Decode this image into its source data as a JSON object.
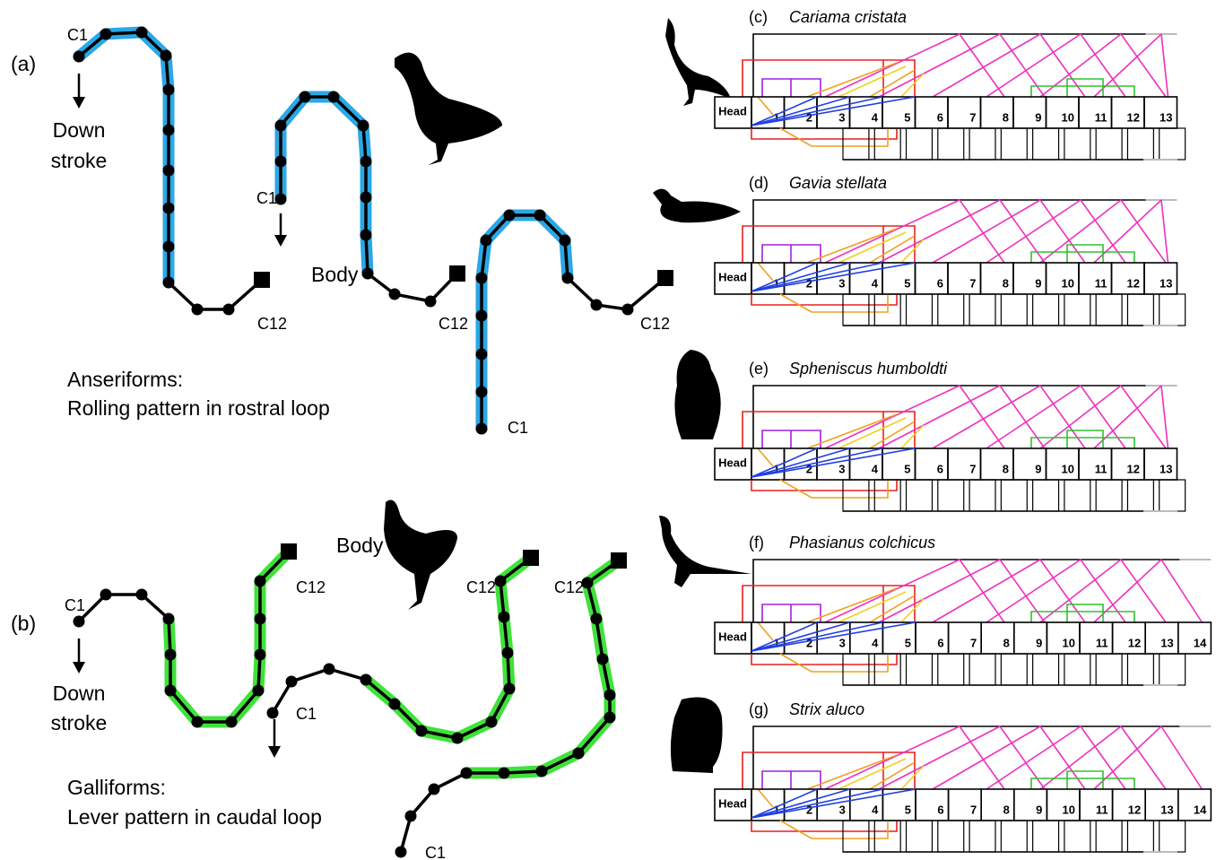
{
  "panel_a": {
    "label": "(a)",
    "down_label": [
      "Down",
      "stroke"
    ],
    "c1_labels": [
      "C1",
      "C1",
      "C1"
    ],
    "c12_labels": [
      "C12",
      "C12",
      "C12"
    ],
    "body_label": "Body",
    "caption": [
      "Anseriforms:",
      "Rolling pattern in rostral loop"
    ]
  },
  "panel_b": {
    "label": "(b)",
    "down_label": [
      "Down",
      "stroke"
    ],
    "c1_labels": [
      "C1",
      "C1",
      "C1"
    ],
    "c12_labels": [
      "C12",
      "C12",
      "C12"
    ],
    "body_label": "Body",
    "caption": [
      "Galliforms:",
      "Lever pattern in caudal loop"
    ]
  },
  "species": [
    {
      "label": "(c)",
      "name": "Cariama cristata",
      "head": "Head",
      "vertebrae": [
        1,
        2,
        3,
        4,
        5,
        6,
        7,
        8,
        9,
        10,
        11,
        12,
        13
      ]
    },
    {
      "label": "(d)",
      "name": "Gavia stellata",
      "head": "Head",
      "vertebrae": [
        1,
        2,
        3,
        4,
        5,
        6,
        7,
        8,
        9,
        10,
        11,
        12,
        13
      ]
    },
    {
      "label": "(e)",
      "name": "Spheniscus humboldti",
      "head": "Head",
      "vertebrae": [
        1,
        2,
        3,
        4,
        5,
        6,
        7,
        8,
        9,
        10,
        11,
        12,
        13
      ]
    },
    {
      "label": "(f)",
      "name": "Phasianus colchicus",
      "head": "Head",
      "vertebrae": [
        1,
        2,
        3,
        4,
        5,
        6,
        7,
        8,
        9,
        10,
        11,
        12,
        13,
        14
      ]
    },
    {
      "label": "(g)",
      "name": "Strix aluco",
      "head": "Head",
      "vertebrae": [
        1,
        2,
        3,
        4,
        5,
        6,
        7,
        8,
        9,
        10,
        11,
        12,
        13,
        14
      ]
    }
  ]
}
